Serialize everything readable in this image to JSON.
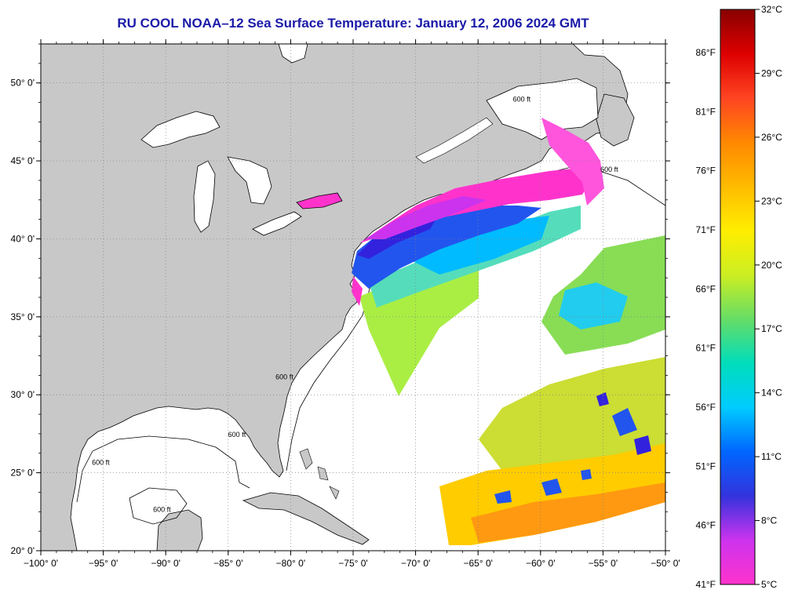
{
  "title": "RU COOL  NOAA–12  Sea Surface Temperature:  January 12, 2006 2024 GMT",
  "map": {
    "lon_range": [
      -100,
      -50
    ],
    "lat_range": [
      20,
      52.5
    ],
    "lon_ticks": [
      {
        "lon": -100,
        "label": "−100° 0'"
      },
      {
        "lon": -95,
        "label": "−95° 0'"
      },
      {
        "lon": -90,
        "label": "−90° 0'"
      },
      {
        "lon": -85,
        "label": "−85° 0'"
      },
      {
        "lon": -80,
        "label": "−80° 0'"
      },
      {
        "lon": -75,
        "label": "−75° 0'"
      },
      {
        "lon": -70,
        "label": "−70° 0'"
      },
      {
        "lon": -65,
        "label": "−65° 0'"
      },
      {
        "lon": -60,
        "label": "−60° 0'"
      },
      {
        "lon": -55,
        "label": "−55° 0'"
      },
      {
        "lon": -50,
        "label": "−50° 0'"
      }
    ],
    "lat_ticks": [
      {
        "lat": 20,
        "label": "20° 0'"
      },
      {
        "lat": 25,
        "label": "25° 0'"
      },
      {
        "lat": 30,
        "label": "30° 0'"
      },
      {
        "lat": 35,
        "label": "35° 0'"
      },
      {
        "lat": 40,
        "label": "40° 0'"
      },
      {
        "lat": 45,
        "label": "45° 0'"
      },
      {
        "lat": 50,
        "label": "50° 0'"
      }
    ],
    "contour_labels": [
      {
        "text": "600 ft",
        "lon": -61.5,
        "lat": 48.8
      },
      {
        "text": "600 ft",
        "lon": -54.5,
        "lat": 44.3
      },
      {
        "text": "600 ft",
        "lon": -80.5,
        "lat": 31.0
      },
      {
        "text": "600 ft",
        "lon": -84.3,
        "lat": 27.3
      },
      {
        "text": "600 ft",
        "lon": -95.2,
        "lat": 25.5
      },
      {
        "text": "600 ft",
        "lon": -90.3,
        "lat": 22.5
      }
    ],
    "colors": {
      "land": "#c8c8c8",
      "water": "#ffffff",
      "coast": "#000000",
      "grid": "#808080"
    }
  },
  "colorbar": {
    "celsius_range": [
      5,
      32
    ],
    "colors": [
      "#ff33cc",
      "#cc33ee",
      "#3333dd",
      "#0066ff",
      "#00ccff",
      "#00ddbb",
      "#66dd66",
      "#ccee22",
      "#ffee00",
      "#ffbb00",
      "#ff8800",
      "#ff4422",
      "#dd0000",
      "#880000"
    ],
    "celsius_labels": [
      "32°C",
      "29°C",
      "26°C",
      "23°C",
      "20°C",
      "17°C",
      "14°C",
      "11°C",
      "8°C",
      "5°C"
    ],
    "fahrenheit_labels": [
      "86°F",
      "81°F",
      "76°F",
      "71°F",
      "66°F",
      "61°F",
      "56°F",
      "51°F",
      "46°F",
      "41°F"
    ]
  }
}
